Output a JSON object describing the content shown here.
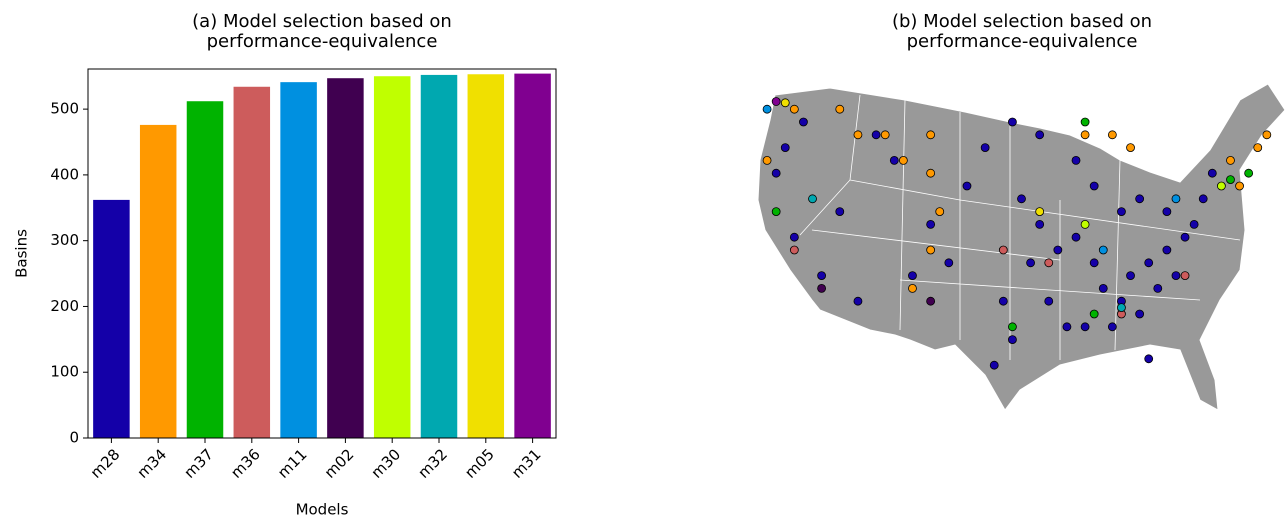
{
  "chart_data": [
    {
      "type": "bar",
      "title": [
        "(a) Model selection based on",
        "performance-equivalence"
      ],
      "x_label": "Models",
      "y_label": "Basins",
      "categories": [
        "m28",
        "m34",
        "m37",
        "m36",
        "m11",
        "m02",
        "m30",
        "m32",
        "m05",
        "m31"
      ],
      "values": [
        362,
        476,
        512,
        534,
        541,
        547,
        550,
        552,
        553,
        554
      ],
      "colors": [
        "#1400a8",
        "#ff9900",
        "#00b300",
        "#cd5c5c",
        "#0090e0",
        "#400050",
        "#c0ff00",
        "#00a8b0",
        "#f0e000",
        "#800090"
      ],
      "ylim": [
        0,
        561
      ],
      "yticks": [
        0,
        100,
        200,
        300,
        400,
        500
      ],
      "grid": false
    },
    {
      "type": "map-scatter",
      "title": [
        "(b) Model selection based on",
        "performance-equivalence"
      ],
      "xlim": [
        -125,
        -67
      ],
      "ylim": [
        24.5,
        49.5
      ],
      "series": [
        {
          "name": "m28",
          "color": "#1400a8",
          "x": [
            -84,
            -82,
            -80,
            -78,
            -77,
            -79,
            -81,
            -85,
            -87,
            -88,
            -90,
            -92,
            -94,
            -96,
            -95,
            -93,
            -91,
            -89,
            -86,
            -83,
            -82,
            -98,
            -97,
            -99,
            -100,
            -97,
            -94,
            -90,
            -88,
            -85,
            -83,
            -80,
            -76,
            -75,
            -110,
            -112,
            -120,
            -122,
            -123,
            -121,
            -118,
            -114,
            -108,
            -106,
            -104,
            -102,
            -116
          ],
          "y": [
            35,
            36,
            37,
            38,
            39,
            35,
            34,
            33,
            34,
            36,
            38,
            37,
            39,
            41,
            36,
            33,
            31,
            31,
            31,
            32,
            28.5,
            33,
            30,
            28,
            45,
            47,
            46,
            44,
            42,
            40,
            41,
            40,
            41,
            43,
            44,
            46,
            47,
            45,
            43,
            38,
            35,
            33,
            35,
            39,
            36,
            42,
            40
          ]
        },
        {
          "name": "m34",
          "color": "#ff9900",
          "x": [
            -121,
            -116,
            -114,
            -111,
            -109,
            -106,
            -105,
            -106,
            -108,
            -89,
            -86,
            -84,
            -73,
            -70,
            -69,
            -72,
            -124,
            -106
          ],
          "y": [
            48,
            48,
            46,
            46,
            44,
            43,
            40,
            37,
            34,
            46,
            46,
            45,
            44,
            45,
            46,
            42,
            44,
            46
          ]
        },
        {
          "name": "m37",
          "color": "#00b300",
          "x": [
            -123,
            -71,
            -73,
            -89,
            -97,
            -88
          ],
          "y": [
            40,
            43,
            42.5,
            47,
            31,
            32
          ]
        },
        {
          "name": "m36",
          "color": "#cd5c5c",
          "x": [
            -98,
            -93,
            -85,
            -78,
            -121
          ],
          "y": [
            37,
            36,
            32,
            35,
            37
          ]
        },
        {
          "name": "m11",
          "color": "#0090e0",
          "x": [
            -124,
            -87,
            -79
          ],
          "y": [
            48,
            37,
            41
          ]
        },
        {
          "name": "m02",
          "color": "#400050",
          "x": [
            -106,
            -118
          ],
          "y": [
            33,
            34
          ]
        },
        {
          "name": "m30",
          "color": "#c0ff00",
          "x": [
            -74,
            -89
          ],
          "y": [
            42,
            39
          ]
        },
        {
          "name": "m32",
          "color": "#00a8b0",
          "x": [
            -85,
            -119
          ],
          "y": [
            32.5,
            41
          ]
        },
        {
          "name": "m05",
          "color": "#f0e000",
          "x": [
            -122,
            -94
          ],
          "y": [
            48.5,
            40
          ]
        },
        {
          "name": "m31",
          "color": "#800090",
          "x": [
            -123
          ],
          "y": [
            48.6
          ]
        }
      ]
    }
  ]
}
